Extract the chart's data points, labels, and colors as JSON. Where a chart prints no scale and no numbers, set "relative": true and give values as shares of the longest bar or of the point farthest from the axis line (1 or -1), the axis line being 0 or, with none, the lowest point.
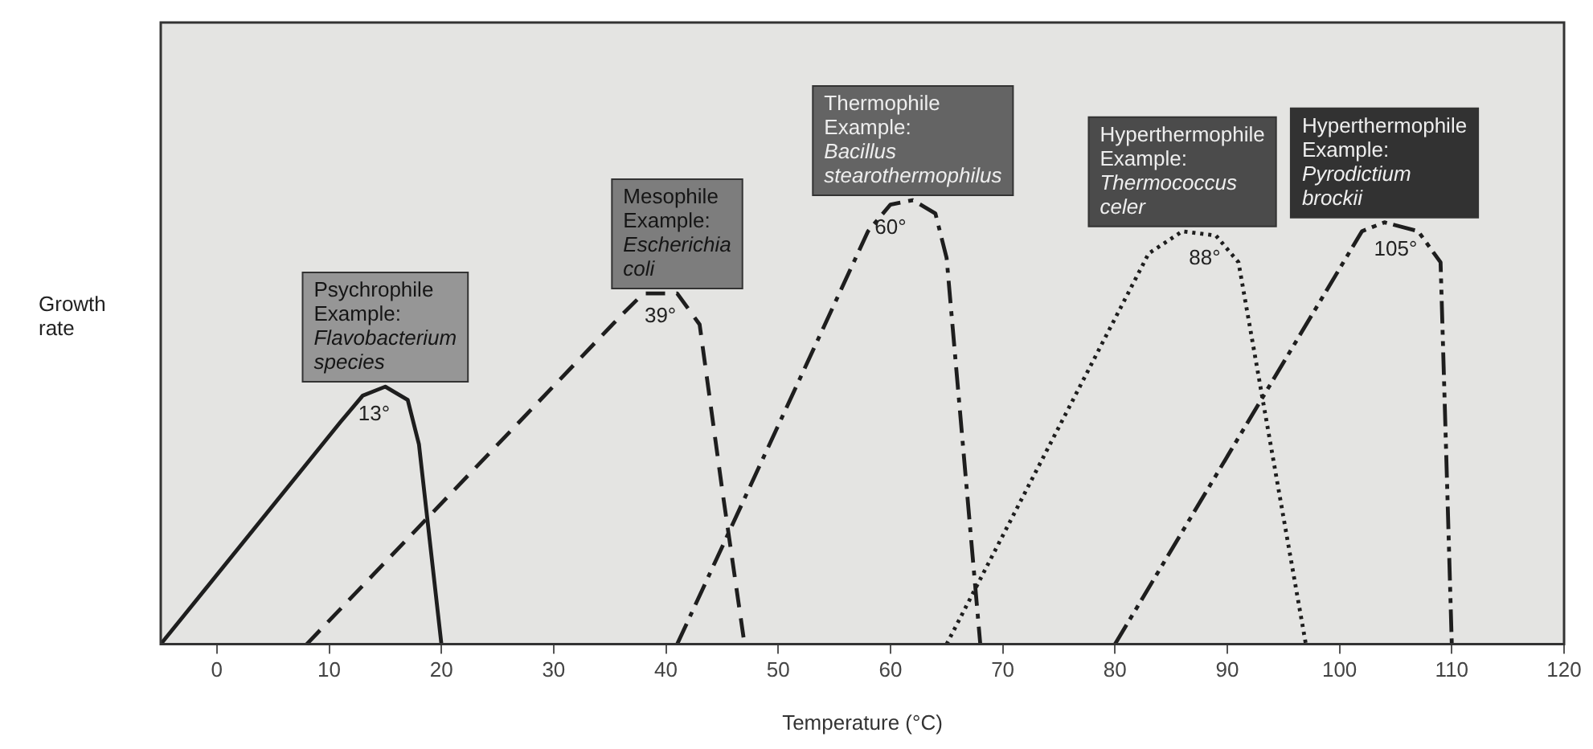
{
  "chart_data": {
    "type": "line",
    "relative": true,
    "xlabel": "Temperature (°C)",
    "ylabel": "Growth rate",
    "xlim": [
      -5,
      120
    ],
    "xticks": [
      0,
      10,
      20,
      30,
      40,
      50,
      60,
      70,
      80,
      90,
      100,
      110,
      120
    ],
    "grid": false,
    "legend": false,
    "marker": "none",
    "series": [
      {
        "name": "Psychrophile\nExample:\nFlavobacterium\nspecies",
        "color": "#1e1e1e",
        "line_style": "solid",
        "x": [
          -5,
          11,
          13,
          15,
          17,
          18,
          20
        ],
        "values": [
          0,
          0.5,
          0.56,
          0.58,
          0.55,
          0.45,
          0
        ]
      },
      {
        "name": "Mesophile\nExample:\nEscherichia\ncoli",
        "color": "#1e1e1e",
        "line_style": "dashed",
        "x": [
          8,
          36,
          38,
          41,
          43,
          45,
          47
        ],
        "values": [
          0,
          0.74,
          0.79,
          0.79,
          0.72,
          0.35,
          0
        ]
      },
      {
        "name": "Thermophile\nExample:\nBacillus\nstearothermophilus",
        "color": "#1e1e1e",
        "line_style": "dashdot",
        "x": [
          41,
          58,
          60,
          62,
          64,
          65,
          68
        ],
        "values": [
          0,
          0.93,
          0.99,
          1,
          0.97,
          0.87,
          0
        ]
      },
      {
        "name": "Hyperthermophile\nExample:\nThermococcus\nceler",
        "color": "#1e1e1e",
        "line_style": "dotted",
        "x": [
          65,
          83,
          86,
          89,
          91,
          97
        ],
        "values": [
          0,
          0.88,
          0.93,
          0.92,
          0.86,
          0
        ]
      },
      {
        "name": "Hyperthermophile\nExample:\nPyrodictium\nbrockii",
        "color": "#1e1e1e",
        "line_style": "dashdotdot",
        "x": [
          80,
          102,
          104,
          107,
          109,
          110
        ],
        "values": [
          0,
          0.93,
          0.95,
          0.93,
          0.86,
          0
        ]
      }
    ],
    "annotations": [
      {
        "text": "13°",
        "x": 14,
        "y": 0.57
      },
      {
        "text": "39°",
        "x": 39.5,
        "y": 0.79
      },
      {
        "text": "60°",
        "x": 60,
        "y": 0.99
      },
      {
        "text": "88°",
        "x": 88,
        "y": 0.92
      },
      {
        "text": "105°",
        "x": 105,
        "y": 0.94
      }
    ]
  }
}
